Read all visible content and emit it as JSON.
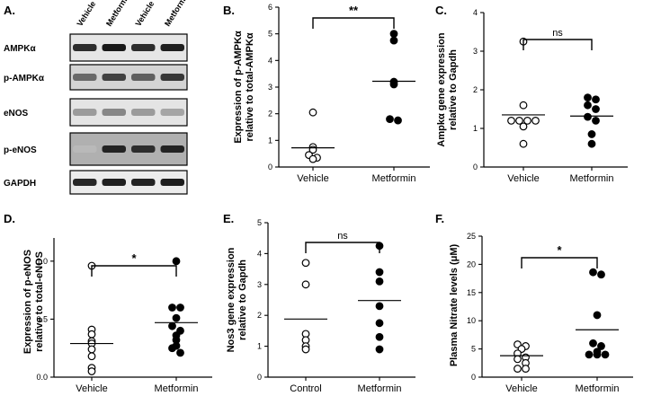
{
  "blot": {
    "label": "A.",
    "lanes": [
      "Vehicle",
      "Metformin",
      "Vehicle",
      "Metformin"
    ],
    "rows": [
      {
        "name": "AMPKα",
        "bg": "#e6e6e6",
        "bands": [
          0.85,
          0.95,
          0.85,
          0.92
        ]
      },
      {
        "name": "p-AMPKα",
        "bg": "#d4d4d4",
        "bands": [
          0.55,
          0.75,
          0.6,
          0.8
        ]
      },
      {
        "name": "eNOS",
        "bg": "#e4e4e4",
        "bands": [
          0.3,
          0.4,
          0.3,
          0.25
        ]
      },
      {
        "name": "p-eNOS",
        "bg": "#b0b0b0",
        "bands": [
          0.15,
          0.9,
          0.85,
          0.9
        ]
      },
      {
        "name": "GAPDH",
        "bg": "#ececec",
        "bands": [
          0.88,
          0.92,
          0.9,
          0.93
        ]
      }
    ]
  },
  "chart_data": [
    {
      "type": "scatter",
      "panel": "B.",
      "ylabel_lines": [
        "Expression of p-AMPKα",
        "relative to total-AMPKα"
      ],
      "ylim": [
        0,
        6
      ],
      "yticks": [
        "0",
        "1",
        "2",
        "3",
        "4",
        "5",
        "6"
      ],
      "ytick_values": [
        0,
        1,
        2,
        3,
        4,
        5,
        6
      ],
      "categories": [
        "Vehicle",
        "Metformin"
      ],
      "series": [
        {
          "name": "Vehicle",
          "filled": false,
          "values": [
            2.05,
            0.75,
            0.65,
            0.45,
            0.35,
            0.3
          ],
          "mean": 0.72
        },
        {
          "name": "Metformin",
          "filled": true,
          "values": [
            5.0,
            4.75,
            3.2,
            3.1,
            1.8,
            1.75
          ],
          "mean": 3.22
        }
      ],
      "significance": "**"
    },
    {
      "type": "scatter",
      "panel": "C.",
      "ylabel_lines": [
        "Ampkα gene expression",
        "relative to Gapdh"
      ],
      "ylim": [
        0,
        4
      ],
      "yticks": [
        "0",
        "1",
        "2",
        "3",
        "4"
      ],
      "ytick_values": [
        0,
        1,
        2,
        3,
        4
      ],
      "categories": [
        "Vehicle",
        "Metformin"
      ],
      "series": [
        {
          "name": "Vehicle",
          "filled": false,
          "values": [
            3.25,
            1.6,
            1.2,
            1.2,
            1.2,
            1.2,
            1.05,
            0.6
          ],
          "mean": 1.35
        },
        {
          "name": "Metformin",
          "filled": true,
          "values": [
            1.8,
            1.75,
            1.6,
            1.5,
            1.3,
            1.2,
            0.85,
            0.6
          ],
          "mean": 1.32
        }
      ],
      "significance": "ns"
    },
    {
      "type": "scatter",
      "panel": "D.",
      "ylabel_lines": [
        "Expression of p-eNOS",
        "relative to total-eNOS"
      ],
      "ylim": [
        0,
        1.2
      ],
      "yticks": [
        "0.0",
        "0.5",
        "1.0"
      ],
      "ytick_values": [
        0,
        0.5,
        1.0
      ],
      "categories": [
        "Vehicle",
        "Metformin"
      ],
      "series": [
        {
          "name": "Vehicle",
          "filled": false,
          "values": [
            0.96,
            0.41,
            0.37,
            0.31,
            0.29,
            0.24,
            0.18,
            0.08,
            0.05
          ],
          "mean": 0.29
        },
        {
          "name": "Metformin",
          "filled": true,
          "values": [
            1.0,
            0.6,
            0.6,
            0.51,
            0.44,
            0.4,
            0.36,
            0.32,
            0.27,
            0.25,
            0.21
          ],
          "mean": 0.47
        }
      ],
      "significance": "*"
    },
    {
      "type": "scatter",
      "panel": "E.",
      "ylabel_lines": [
        "Nos3 gene expression",
        "relative to Gapdh"
      ],
      "ylim": [
        0,
        5
      ],
      "yticks": [
        "0",
        "1",
        "2",
        "3",
        "4",
        "5"
      ],
      "ytick_values": [
        0,
        1,
        2,
        3,
        4,
        5
      ],
      "categories": [
        "Control",
        "Metformin"
      ],
      "series": [
        {
          "name": "Control",
          "filled": false,
          "values": [
            3.7,
            3.0,
            1.4,
            1.2,
            1.0,
            0.9
          ],
          "mean": 1.88
        },
        {
          "name": "Metformin",
          "filled": true,
          "values": [
            4.25,
            3.4,
            3.1,
            2.3,
            1.75,
            1.3,
            0.9
          ],
          "mean": 2.48
        }
      ],
      "significance": "ns"
    },
    {
      "type": "scatter",
      "panel": "F.",
      "ylabel_lines": [
        "Plasma Nitrate levels (μM)"
      ],
      "ylim": [
        0,
        25
      ],
      "yticks": [
        "0",
        "5",
        "10",
        "15",
        "20",
        "25"
      ],
      "ytick_values": [
        0,
        5,
        10,
        15,
        20,
        25
      ],
      "categories": [
        "Vehicle",
        "Metformin"
      ],
      "series": [
        {
          "name": "Vehicle",
          "filled": false,
          "values": [
            5.8,
            5.5,
            5.0,
            4.2,
            3.5,
            3.2,
            2.5,
            1.5,
            1.5
          ],
          "mean": 3.8
        },
        {
          "name": "Metformin",
          "filled": true,
          "values": [
            18.6,
            18.2,
            11.0,
            6.0,
            5.5,
            4.5,
            4.0,
            4.0,
            4.0
          ],
          "mean": 8.4
        }
      ],
      "significance": "*"
    }
  ]
}
